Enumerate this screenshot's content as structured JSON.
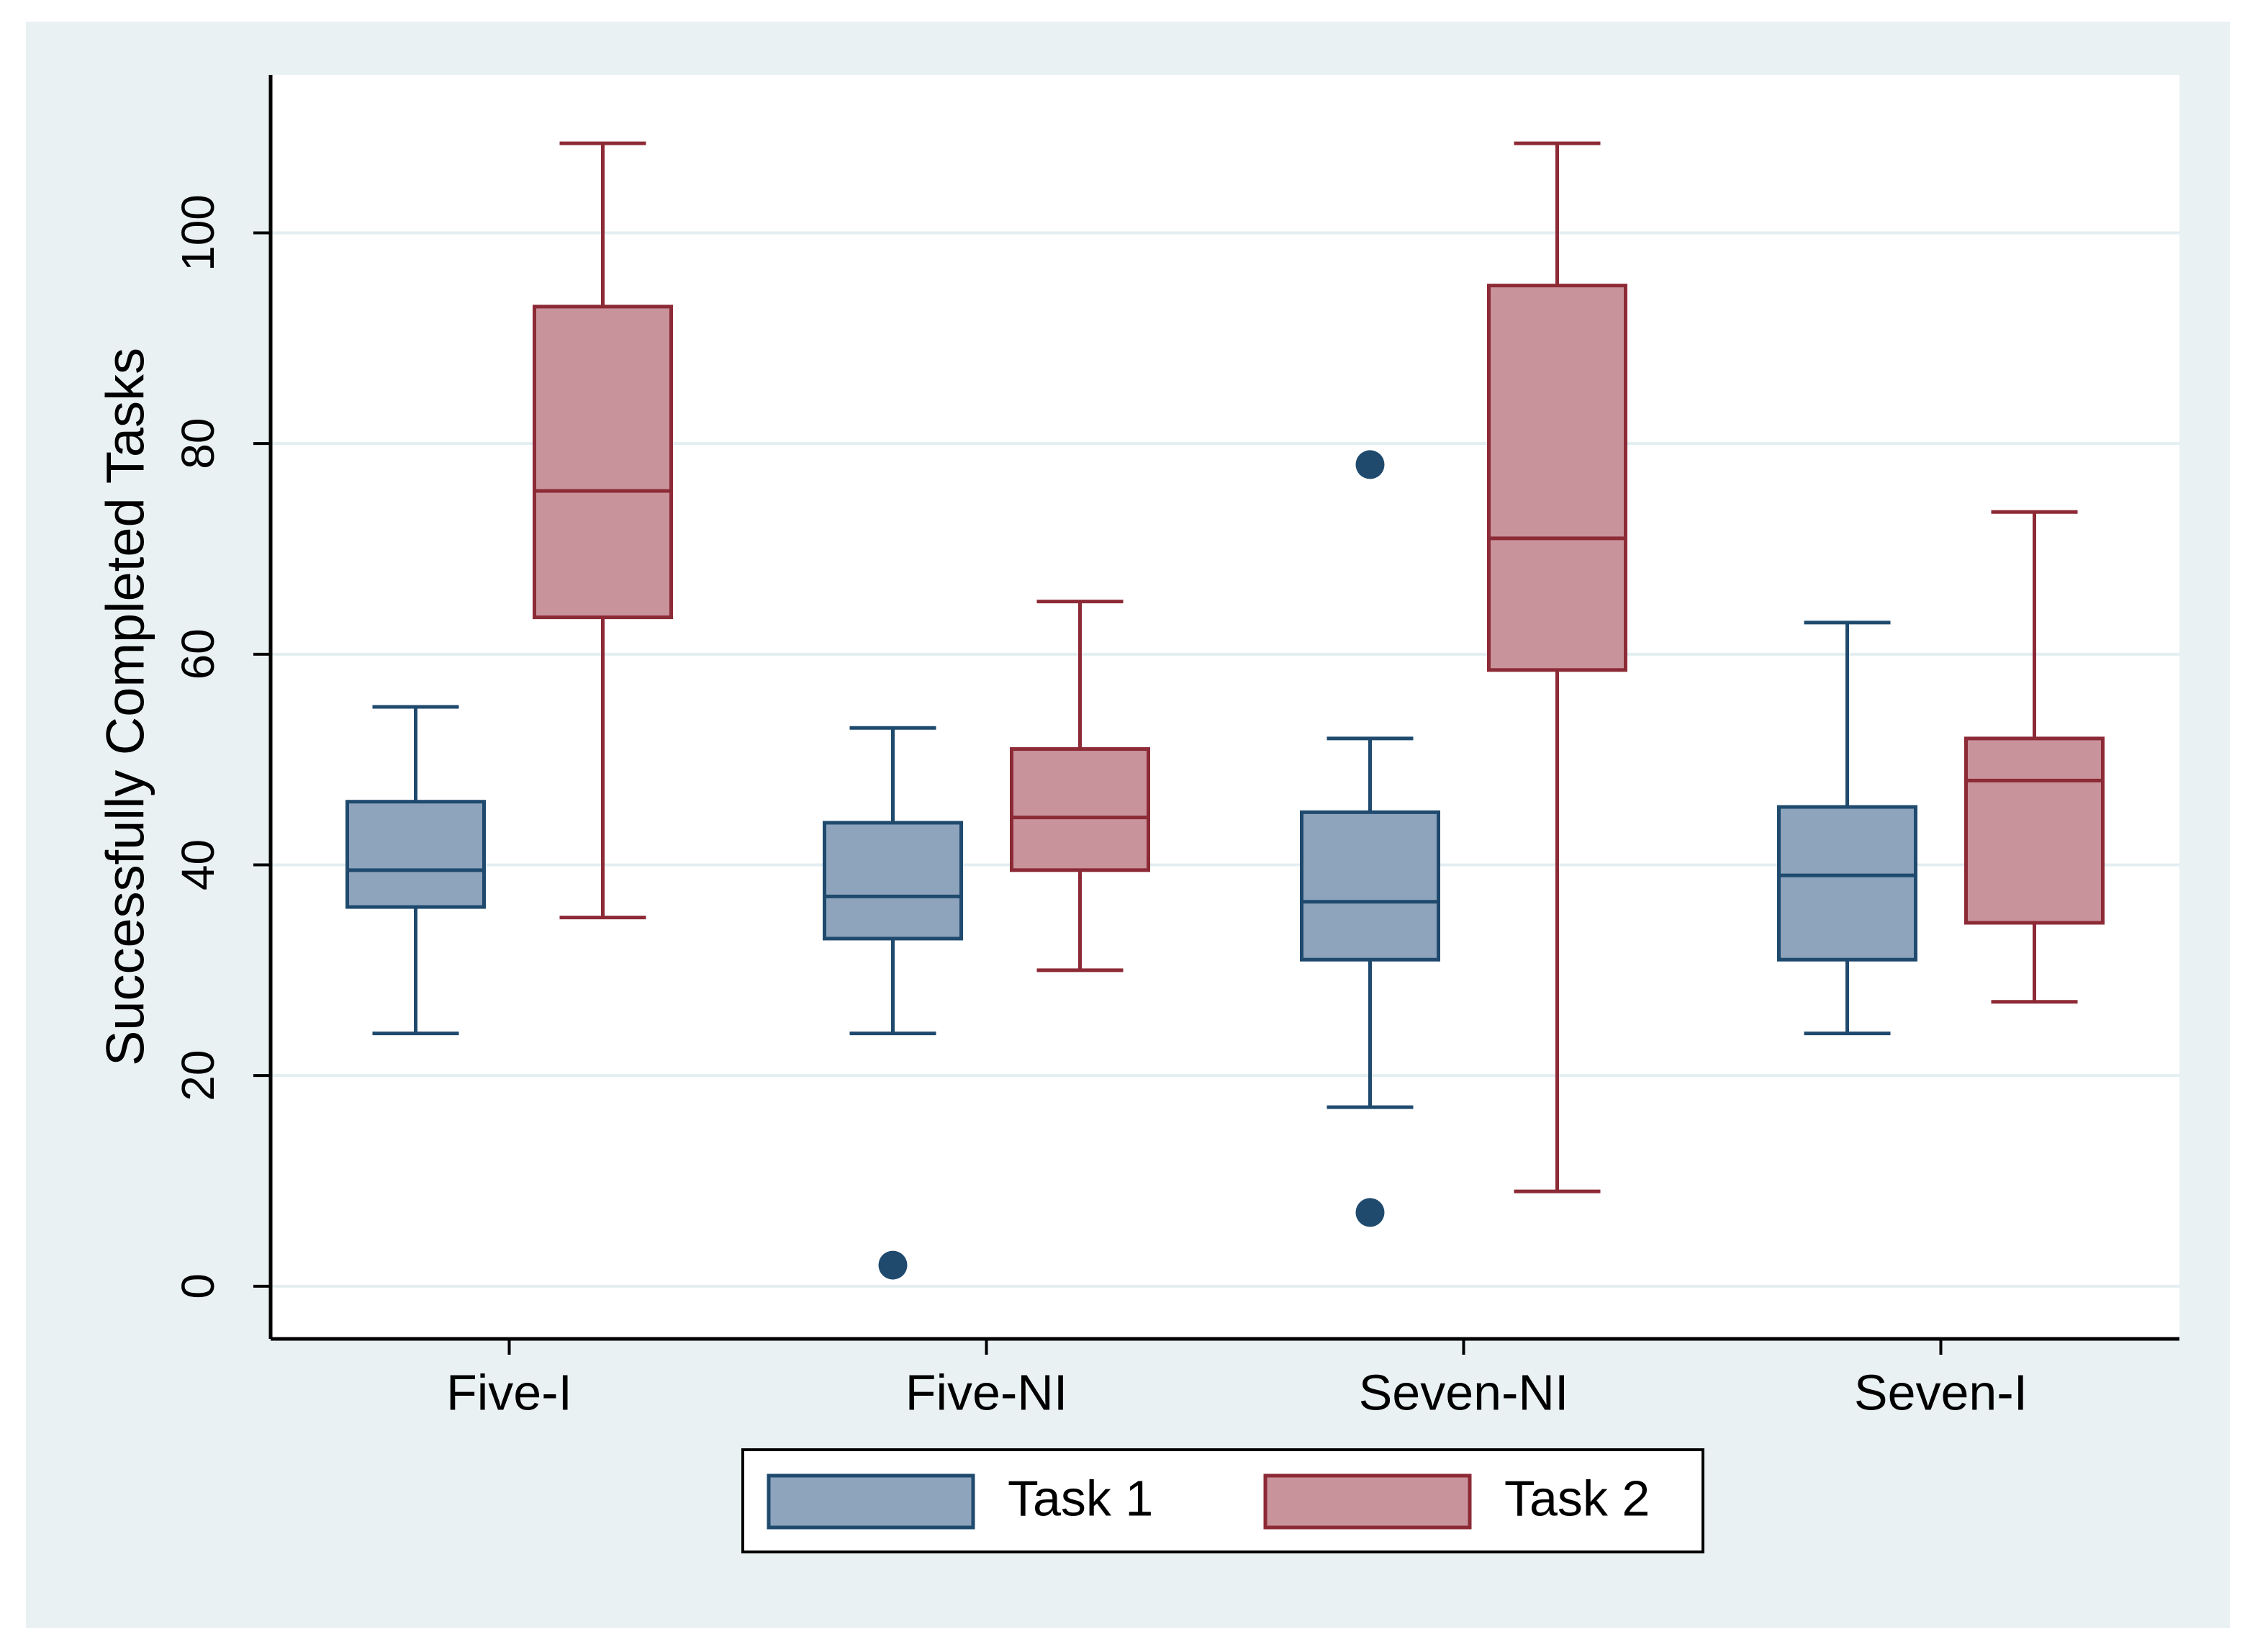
{
  "chart_data": {
    "type": "box",
    "title": "",
    "xlabel": "",
    "ylabel": "Successfully Completed Tasks",
    "ylim": [
      -5,
      115
    ],
    "yticks": [
      0,
      20,
      40,
      60,
      80,
      100
    ],
    "ytick_labels": [
      "0",
      "20",
      "40",
      "60",
      "80",
      "100"
    ],
    "grid": true,
    "legend_position": "bottom",
    "categories": [
      "Five-I",
      "Five-NI",
      "Seven-NI",
      "Seven-I"
    ],
    "series": [
      {
        "name": "Task 1",
        "color": "#8ea4bc",
        "edge_color": "#1f4a6e",
        "boxes": [
          {
            "min": 24,
            "q1": 36,
            "median": 39.5,
            "q3": 46,
            "max": 55,
            "outliers": []
          },
          {
            "min": 24,
            "q1": 33,
            "median": 37,
            "q3": 44,
            "max": 53,
            "outliers": [
              2
            ]
          },
          {
            "min": 17,
            "q1": 31,
            "median": 36.5,
            "q3": 45,
            "max": 52,
            "outliers": [
              78,
              7
            ]
          },
          {
            "min": 24,
            "q1": 31,
            "median": 39,
            "q3": 45.5,
            "max": 63,
            "outliers": []
          }
        ]
      },
      {
        "name": "Task 2",
        "color": "#c9939b",
        "edge_color": "#8c2a36",
        "boxes": [
          {
            "min": 35,
            "q1": 63.5,
            "median": 75.5,
            "q3": 93,
            "max": 108.5,
            "outliers": []
          },
          {
            "min": 30,
            "q1": 39.5,
            "median": 44.5,
            "q3": 51,
            "max": 65,
            "outliers": []
          },
          {
            "min": 9,
            "q1": 58.5,
            "median": 71,
            "q3": 95,
            "max": 108.5,
            "outliers": []
          },
          {
            "min": 27,
            "q1": 34.5,
            "median": 48,
            "q3": 52,
            "max": 73.5,
            "outliers": []
          }
        ]
      }
    ]
  },
  "colors": {
    "outer_background": "#e9f1f3",
    "plot_background": "#ffffff",
    "gridline": "#e3eef1",
    "axis": "#000000",
    "text": "#000000"
  }
}
